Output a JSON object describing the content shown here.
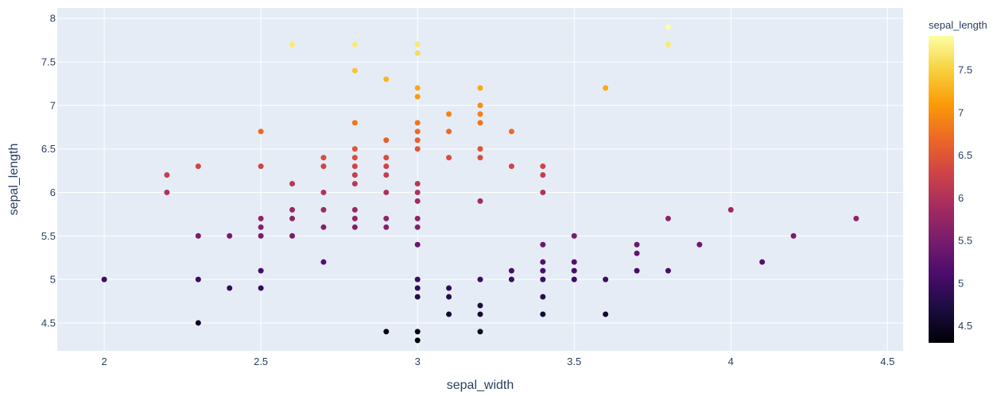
{
  "chart_data": {
    "type": "scatter",
    "xlabel": "sepal_width",
    "ylabel": "sepal_length",
    "xlim": [
      1.85,
      4.55
    ],
    "ylim": [
      4.18,
      8.12
    ],
    "x_ticks": [
      2,
      2.5,
      3,
      3.5,
      4,
      4.5
    ],
    "x_tick_labels": [
      "2",
      "2.5",
      "3",
      "3.5",
      "4",
      "4.5"
    ],
    "y_ticks": [
      4.5,
      5,
      5.5,
      6,
      6.5,
      7,
      7.5,
      8
    ],
    "y_tick_labels": [
      "4.5",
      "5",
      "5.5",
      "6",
      "6.5",
      "7",
      "7.5",
      "8"
    ],
    "grid": true,
    "plot_background": "#e5ecf6",
    "colorbar": {
      "title": "sepal_length",
      "range": [
        4.3,
        7.9
      ],
      "ticks": [
        4.5,
        5,
        5.5,
        6,
        6.5,
        7,
        7.5
      ],
      "tick_labels": [
        "4.5",
        "5",
        "5.5",
        "6",
        "6.5",
        "7",
        "7.5"
      ],
      "colorscale": [
        "#000004",
        "#1b0c41",
        "#4a0c6b",
        "#781c6d",
        "#a52c60",
        "#cf4446",
        "#ed6925",
        "#fb9b06",
        "#f7d13d",
        "#fcffa4"
      ]
    },
    "points": [
      {
        "x": 2.0,
        "y": 5.0
      },
      {
        "x": 2.2,
        "y": 6.2
      },
      {
        "x": 2.2,
        "y": 6.0
      },
      {
        "x": 2.3,
        "y": 6.3
      },
      {
        "x": 2.3,
        "y": 5.5
      },
      {
        "x": 2.3,
        "y": 5.0
      },
      {
        "x": 2.3,
        "y": 4.5
      },
      {
        "x": 2.4,
        "y": 5.5
      },
      {
        "x": 2.4,
        "y": 4.9
      },
      {
        "x": 2.5,
        "y": 6.7
      },
      {
        "x": 2.5,
        "y": 6.3
      },
      {
        "x": 2.5,
        "y": 5.7
      },
      {
        "x": 2.5,
        "y": 5.6
      },
      {
        "x": 2.5,
        "y": 5.5
      },
      {
        "x": 2.5,
        "y": 5.1
      },
      {
        "x": 2.5,
        "y": 4.9
      },
      {
        "x": 2.6,
        "y": 7.7
      },
      {
        "x": 2.6,
        "y": 6.1
      },
      {
        "x": 2.6,
        "y": 5.8
      },
      {
        "x": 2.6,
        "y": 5.7
      },
      {
        "x": 2.6,
        "y": 5.5
      },
      {
        "x": 2.7,
        "y": 6.4
      },
      {
        "x": 2.7,
        "y": 6.3
      },
      {
        "x": 2.7,
        "y": 6.0
      },
      {
        "x": 2.7,
        "y": 5.8
      },
      {
        "x": 2.7,
        "y": 5.6
      },
      {
        "x": 2.7,
        "y": 5.2
      },
      {
        "x": 2.8,
        "y": 7.7
      },
      {
        "x": 2.8,
        "y": 7.4
      },
      {
        "x": 2.8,
        "y": 6.8
      },
      {
        "x": 2.8,
        "y": 6.5
      },
      {
        "x": 2.8,
        "y": 6.4
      },
      {
        "x": 2.8,
        "y": 6.3
      },
      {
        "x": 2.8,
        "y": 6.2
      },
      {
        "x": 2.8,
        "y": 6.1
      },
      {
        "x": 2.8,
        "y": 5.8
      },
      {
        "x": 2.8,
        "y": 5.7
      },
      {
        "x": 2.8,
        "y": 5.6
      },
      {
        "x": 2.9,
        "y": 7.3
      },
      {
        "x": 2.9,
        "y": 6.6
      },
      {
        "x": 2.9,
        "y": 6.4
      },
      {
        "x": 2.9,
        "y": 6.3
      },
      {
        "x": 2.9,
        "y": 6.2
      },
      {
        "x": 2.9,
        "y": 6.0
      },
      {
        "x": 2.9,
        "y": 5.7
      },
      {
        "x": 2.9,
        "y": 5.6
      },
      {
        "x": 2.9,
        "y": 4.4
      },
      {
        "x": 3.0,
        "y": 7.7
      },
      {
        "x": 3.0,
        "y": 7.6
      },
      {
        "x": 3.0,
        "y": 7.2
      },
      {
        "x": 3.0,
        "y": 7.1
      },
      {
        "x": 3.0,
        "y": 6.8
      },
      {
        "x": 3.0,
        "y": 6.7
      },
      {
        "x": 3.0,
        "y": 6.6
      },
      {
        "x": 3.0,
        "y": 6.5
      },
      {
        "x": 3.0,
        "y": 6.1
      },
      {
        "x": 3.0,
        "y": 6.0
      },
      {
        "x": 3.0,
        "y": 5.9
      },
      {
        "x": 3.0,
        "y": 5.7
      },
      {
        "x": 3.0,
        "y": 5.6
      },
      {
        "x": 3.0,
        "y": 5.4
      },
      {
        "x": 3.0,
        "y": 5.0
      },
      {
        "x": 3.0,
        "y": 4.9
      },
      {
        "x": 3.0,
        "y": 4.8
      },
      {
        "x": 3.0,
        "y": 4.4
      },
      {
        "x": 3.0,
        "y": 4.3
      },
      {
        "x": 3.1,
        "y": 6.9
      },
      {
        "x": 3.1,
        "y": 6.7
      },
      {
        "x": 3.1,
        "y": 6.4
      },
      {
        "x": 3.1,
        "y": 4.9
      },
      {
        "x": 3.1,
        "y": 4.8
      },
      {
        "x": 3.1,
        "y": 4.6
      },
      {
        "x": 3.2,
        "y": 7.2
      },
      {
        "x": 3.2,
        "y": 7.0
      },
      {
        "x": 3.2,
        "y": 6.9
      },
      {
        "x": 3.2,
        "y": 6.8
      },
      {
        "x": 3.2,
        "y": 6.5
      },
      {
        "x": 3.2,
        "y": 6.4
      },
      {
        "x": 3.2,
        "y": 5.9
      },
      {
        "x": 3.2,
        "y": 5.0
      },
      {
        "x": 3.2,
        "y": 4.7
      },
      {
        "x": 3.2,
        "y": 4.6
      },
      {
        "x": 3.2,
        "y": 4.4
      },
      {
        "x": 3.3,
        "y": 6.7
      },
      {
        "x": 3.3,
        "y": 6.3
      },
      {
        "x": 3.3,
        "y": 5.1
      },
      {
        "x": 3.3,
        "y": 5.0
      },
      {
        "x": 3.4,
        "y": 6.3
      },
      {
        "x": 3.4,
        "y": 6.2
      },
      {
        "x": 3.4,
        "y": 6.0
      },
      {
        "x": 3.4,
        "y": 5.4
      },
      {
        "x": 3.4,
        "y": 5.2
      },
      {
        "x": 3.4,
        "y": 5.1
      },
      {
        "x": 3.4,
        "y": 5.0
      },
      {
        "x": 3.4,
        "y": 4.8
      },
      {
        "x": 3.4,
        "y": 4.6
      },
      {
        "x": 3.5,
        "y": 5.5
      },
      {
        "x": 3.5,
        "y": 5.2
      },
      {
        "x": 3.5,
        "y": 5.1
      },
      {
        "x": 3.5,
        "y": 5.0
      },
      {
        "x": 3.6,
        "y": 7.2
      },
      {
        "x": 3.6,
        "y": 5.0
      },
      {
        "x": 3.6,
        "y": 4.6
      },
      {
        "x": 3.7,
        "y": 5.4
      },
      {
        "x": 3.7,
        "y": 5.3
      },
      {
        "x": 3.7,
        "y": 5.1
      },
      {
        "x": 3.8,
        "y": 7.9
      },
      {
        "x": 3.8,
        "y": 7.7
      },
      {
        "x": 3.8,
        "y": 5.7
      },
      {
        "x": 3.8,
        "y": 5.1
      },
      {
        "x": 3.9,
        "y": 5.4
      },
      {
        "x": 4.0,
        "y": 5.8
      },
      {
        "x": 4.1,
        "y": 5.2
      },
      {
        "x": 4.2,
        "y": 5.5
      },
      {
        "x": 4.4,
        "y": 5.7
      }
    ]
  }
}
